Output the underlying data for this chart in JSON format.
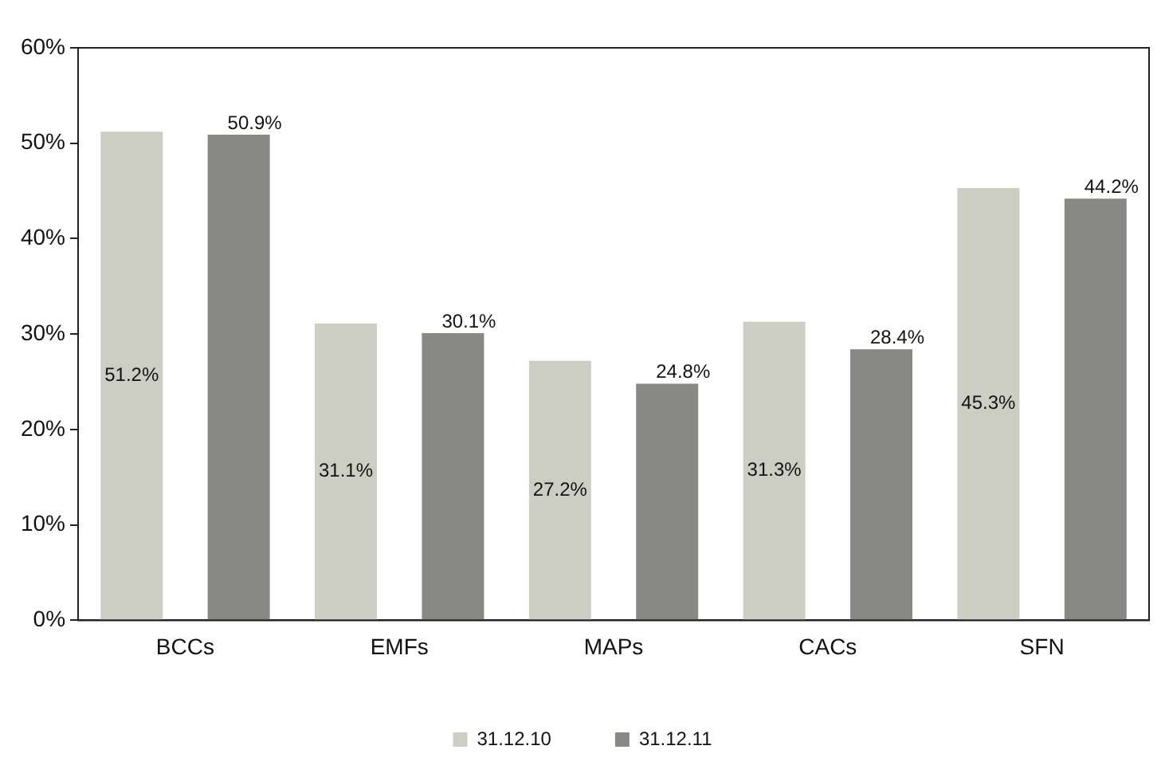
{
  "chart_data": {
    "type": "bar",
    "categories": [
      "BCCs",
      "EMFs",
      "MAPs",
      "CACs",
      "SFN"
    ],
    "series": [
      {
        "name": "31.12.10",
        "color": "#cccdc3",
        "values": [
          51.2,
          31.1,
          27.2,
          31.3,
          45.3
        ],
        "value_labels": [
          "51.2%",
          "31.1%",
          "27.2%",
          "31.3%",
          "45.3%"
        ]
      },
      {
        "name": "31.12.11",
        "color": "#888884",
        "values": [
          50.9,
          30.1,
          24.8,
          28.4,
          44.2
        ],
        "value_labels": [
          "50.9%",
          "30.1%",
          "24.8%",
          "28.4%",
          "44.2%"
        ]
      }
    ],
    "ylim": [
      0,
      60
    ],
    "yticks": [
      {
        "value": 0,
        "label": "0%"
      },
      {
        "value": 10,
        "label": "10%"
      },
      {
        "value": 20,
        "label": "20%"
      },
      {
        "value": 30,
        "label": "30%"
      },
      {
        "value": 40,
        "label": "40%"
      },
      {
        "value": 50,
        "label": "50%"
      },
      {
        "value": 60,
        "label": "60%"
      }
    ],
    "grid": false,
    "legend": "bottom"
  }
}
